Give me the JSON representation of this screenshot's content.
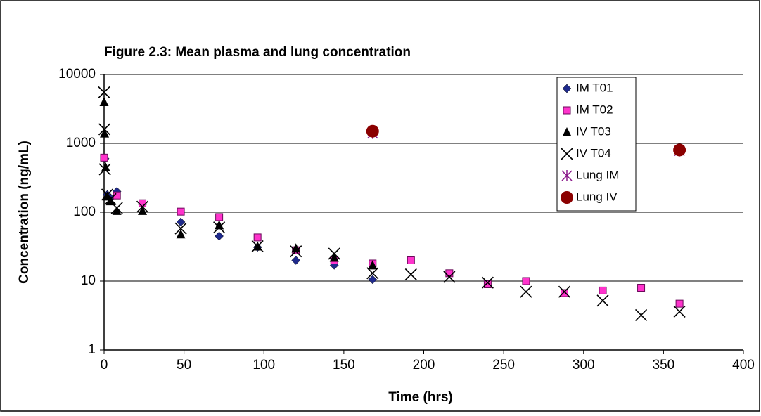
{
  "chart_data": {
    "type": "scatter",
    "title": "Figure 2.3: Mean plasma and lung concentration",
    "x_label": "Time (hrs)",
    "y_label": "Concentration (ng/mL)",
    "log_y": true,
    "grid": true,
    "legend": "top-right",
    "xlim": [
      0,
      400
    ],
    "xticks": [
      0,
      50,
      100,
      150,
      200,
      250,
      300,
      350,
      400
    ],
    "ylim": [
      1,
      10000
    ],
    "yticks": [
      1,
      10,
      100,
      1000,
      10000
    ],
    "series": [
      {
        "name": "IM T01",
        "color": "#1f2a8c",
        "marker": "diamond",
        "x": [
          0.5,
          2,
          4,
          8,
          24,
          48,
          72,
          96,
          120,
          144,
          168
        ],
        "values": [
          600,
          180,
          160,
          200,
          130,
          72,
          45,
          31,
          20,
          17,
          10.5
        ]
      },
      {
        "name": "IM T02",
        "color": "#ff33cc",
        "marker": "square",
        "x": [
          0,
          8,
          24,
          48,
          72,
          96,
          120,
          144,
          168,
          192,
          216,
          240,
          264,
          288,
          312,
          336,
          360
        ],
        "values": [
          620,
          175,
          135,
          102,
          85,
          43,
          28,
          20,
          18,
          20,
          13,
          9,
          10,
          6.7,
          7.3,
          8,
          4.7
        ]
      },
      {
        "name": "IV T03",
        "color": "#000000",
        "marker": "triangle",
        "x": [
          0,
          0.25,
          1,
          2,
          4,
          8,
          24,
          48,
          72,
          96,
          120,
          144,
          168
        ],
        "values": [
          4000,
          1400,
          450,
          170,
          145,
          105,
          105,
          48,
          65,
          32,
          30,
          22,
          17
        ]
      },
      {
        "name": "IV T04",
        "color": "#000000",
        "marker": "x",
        "x": [
          0,
          0.25,
          0.5,
          2,
          4,
          8,
          24,
          48,
          72,
          96,
          120,
          144,
          168,
          192,
          216,
          240,
          264,
          288,
          312,
          336,
          360
        ],
        "values": [
          5500,
          1600,
          420,
          180,
          155,
          115,
          120,
          58,
          60,
          32,
          27,
          25,
          13,
          12.5,
          11.5,
          9.5,
          7,
          7,
          5.2,
          3.2,
          3.6
        ]
      },
      {
        "name": "Lung IM",
        "color": "#8b1a8b",
        "marker": "star",
        "x": [
          168,
          360
        ],
        "values": [
          1400,
          780
        ]
      },
      {
        "name": "Lung IV",
        "color": "#8b0000",
        "marker": "circle",
        "x": [
          168,
          360
        ],
        "values": [
          1500,
          800
        ]
      }
    ]
  }
}
